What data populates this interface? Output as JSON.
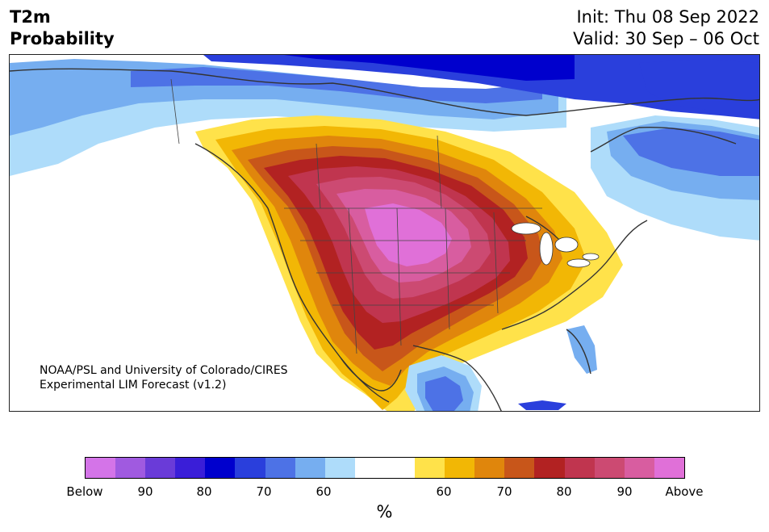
{
  "title": {
    "line1": "T2m",
    "line2": "Probability"
  },
  "dates": {
    "init": "Init: Thu 08 Sep 2022",
    "valid": "Valid: 30 Sep – 06 Oct"
  },
  "credit": {
    "line1": "NOAA/PSL and University of Colorado/CIRES",
    "line2": "Experimental LIM Forecast (v1.2)"
  },
  "colorbar": {
    "colors": [
      "#d474e8",
      "#a05ae0",
      "#6a3bd8",
      "#3a1ed8",
      "#0000cd",
      "#2a3fdc",
      "#4d72e6",
      "#76aef0",
      "#aedcfa",
      "#ffffff",
      "#ffffff",
      "#ffe24a",
      "#f2b705",
      "#e0860c",
      "#c8561a",
      "#b22222",
      "#c0354f",
      "#cc4a72",
      "#d85da0",
      "#e070d8"
    ],
    "tick_labels": [
      "Below",
      "90",
      "80",
      "70",
      "60",
      "60",
      "70",
      "80",
      "90",
      "Above"
    ],
    "unit": "%"
  },
  "map_colors": {
    "ocean": "#ffffff",
    "land_outline": "#333333",
    "above": [
      "#ffe24a",
      "#f2b705",
      "#e0860c",
      "#c8561a",
      "#b22222",
      "#c0354f",
      "#cc4a72",
      "#d85da0",
      "#e070d8"
    ],
    "below": [
      "#aedcfa",
      "#76aef0",
      "#4d72e6",
      "#2a3fdc",
      "#0000cd"
    ]
  }
}
